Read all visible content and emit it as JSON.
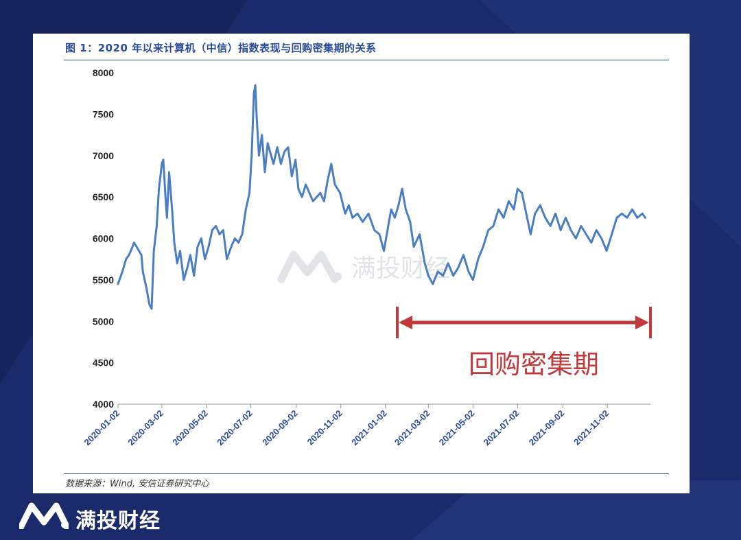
{
  "figure": {
    "title": "图 1：2020 年以来计算机（中信）指数表现与回购密集期的关系",
    "source": "数据来源：Wind, 安信证券研究中心"
  },
  "watermark": {
    "text": "满投财经",
    "icon": "brand-m-logo-icon"
  },
  "footer": {
    "brand": "满投财经",
    "icon": "brand-m-logo-icon"
  },
  "annotation": {
    "label": "回购密集期",
    "start": "2021-01-02",
    "end": "2021-12-31",
    "color": "#c0393b"
  },
  "colors": {
    "line": "#4a7ec4",
    "accent": "#2a4a9a",
    "background": "#1a2a6b"
  },
  "chart_data": {
    "type": "line",
    "title": "",
    "xlabel": "",
    "ylabel": "",
    "ylim": [
      4000,
      8000
    ],
    "yticks": [
      4000,
      4500,
      5000,
      5500,
      6000,
      6500,
      7000,
      7500,
      8000
    ],
    "xticks": [
      "2020-01-02",
      "2020-03-02",
      "2020-05-02",
      "2020-07-02",
      "2020-09-02",
      "2020-11-02",
      "2021-01-02",
      "2021-03-02",
      "2021-05-02",
      "2021-07-02",
      "2021-09-02",
      "2021-11-02"
    ],
    "grid": false,
    "legend": "none",
    "series": [
      {
        "points": [
          [
            "2020-01-02",
            5450
          ],
          [
            "2020-01-08",
            5600
          ],
          [
            "2020-01-13",
            5750
          ],
          [
            "2020-01-17",
            5800
          ],
          [
            "2020-01-21",
            5880
          ],
          [
            "2020-01-24",
            5950
          ],
          [
            "2020-02-03",
            5800
          ],
          [
            "2020-02-05",
            5600
          ],
          [
            "2020-02-10",
            5400
          ],
          [
            "2020-02-14",
            5200
          ],
          [
            "2020-02-17",
            5150
          ],
          [
            "2020-02-20",
            5850
          ],
          [
            "2020-02-24",
            6150
          ],
          [
            "2020-02-27",
            6600
          ],
          [
            "2020-03-02",
            6900
          ],
          [
            "2020-03-04",
            6950
          ],
          [
            "2020-03-07",
            6500
          ],
          [
            "2020-03-09",
            6250
          ],
          [
            "2020-03-12",
            6800
          ],
          [
            "2020-03-16",
            6350
          ],
          [
            "2020-03-19",
            5950
          ],
          [
            "2020-03-23",
            5700
          ],
          [
            "2020-03-27",
            5850
          ],
          [
            "2020-04-01",
            5500
          ],
          [
            "2020-04-06",
            5650
          ],
          [
            "2020-04-10",
            5800
          ],
          [
            "2020-04-15",
            5550
          ],
          [
            "2020-04-20",
            5900
          ],
          [
            "2020-04-25",
            6000
          ],
          [
            "2020-04-30",
            5750
          ],
          [
            "2020-05-05",
            5900
          ],
          [
            "2020-05-10",
            6100
          ],
          [
            "2020-05-15",
            6150
          ],
          [
            "2020-05-20",
            6050
          ],
          [
            "2020-05-25",
            6100
          ],
          [
            "2020-05-30",
            5750
          ],
          [
            "2020-06-05",
            5900
          ],
          [
            "2020-06-10",
            6000
          ],
          [
            "2020-06-15",
            5950
          ],
          [
            "2020-06-20",
            6050
          ],
          [
            "2020-06-25",
            6350
          ],
          [
            "2020-06-30",
            6550
          ],
          [
            "2020-07-03",
            7000
          ],
          [
            "2020-07-06",
            7750
          ],
          [
            "2020-07-08",
            7850
          ],
          [
            "2020-07-10",
            7450
          ],
          [
            "2020-07-13",
            7000
          ],
          [
            "2020-07-17",
            7250
          ],
          [
            "2020-07-21",
            6800
          ],
          [
            "2020-07-25",
            7150
          ],
          [
            "2020-07-28",
            7050
          ],
          [
            "2020-08-02",
            6900
          ],
          [
            "2020-08-07",
            7100
          ],
          [
            "2020-08-12",
            6900
          ],
          [
            "2020-08-17",
            7050
          ],
          [
            "2020-08-22",
            7100
          ],
          [
            "2020-08-27",
            6750
          ],
          [
            "2020-09-01",
            6950
          ],
          [
            "2020-09-05",
            6600
          ],
          [
            "2020-09-10",
            6500
          ],
          [
            "2020-09-15",
            6650
          ],
          [
            "2020-09-20",
            6550
          ],
          [
            "2020-09-25",
            6450
          ],
          [
            "2020-10-05",
            6550
          ],
          [
            "2020-10-10",
            6450
          ],
          [
            "2020-10-15",
            6700
          ],
          [
            "2020-10-20",
            6900
          ],
          [
            "2020-10-25",
            6650
          ],
          [
            "2020-11-01",
            6550
          ],
          [
            "2020-11-08",
            6300
          ],
          [
            "2020-11-13",
            6400
          ],
          [
            "2020-11-18",
            6250
          ],
          [
            "2020-11-25",
            6300
          ],
          [
            "2020-12-02",
            6200
          ],
          [
            "2020-12-10",
            6300
          ],
          [
            "2020-12-18",
            6100
          ],
          [
            "2020-12-25",
            6050
          ],
          [
            "2020-12-31",
            5850
          ],
          [
            "2021-01-05",
            6100
          ],
          [
            "2021-01-10",
            6350
          ],
          [
            "2021-01-15",
            6250
          ],
          [
            "2021-01-20",
            6400
          ],
          [
            "2021-01-25",
            6600
          ],
          [
            "2021-01-30",
            6350
          ],
          [
            "2021-02-05",
            6200
          ],
          [
            "2021-02-10",
            5900
          ],
          [
            "2021-02-18",
            6050
          ],
          [
            "2021-02-25",
            5700
          ],
          [
            "2021-03-02",
            5550
          ],
          [
            "2021-03-08",
            5450
          ],
          [
            "2021-03-15",
            5600
          ],
          [
            "2021-03-22",
            5550
          ],
          [
            "2021-03-29",
            5700
          ],
          [
            "2021-04-05",
            5550
          ],
          [
            "2021-04-12",
            5650
          ],
          [
            "2021-04-19",
            5800
          ],
          [
            "2021-04-26",
            5600
          ],
          [
            "2021-05-02",
            5500
          ],
          [
            "2021-05-09",
            5750
          ],
          [
            "2021-05-16",
            5900
          ],
          [
            "2021-05-23",
            6100
          ],
          [
            "2021-05-30",
            6150
          ],
          [
            "2021-06-06",
            6350
          ],
          [
            "2021-06-13",
            6250
          ],
          [
            "2021-06-20",
            6450
          ],
          [
            "2021-06-27",
            6350
          ],
          [
            "2021-07-02",
            6600
          ],
          [
            "2021-07-08",
            6550
          ],
          [
            "2021-07-14",
            6300
          ],
          [
            "2021-07-20",
            6050
          ],
          [
            "2021-07-26",
            6300
          ],
          [
            "2021-08-02",
            6400
          ],
          [
            "2021-08-09",
            6250
          ],
          [
            "2021-08-16",
            6150
          ],
          [
            "2021-08-23",
            6300
          ],
          [
            "2021-08-30",
            6100
          ],
          [
            "2021-09-06",
            6250
          ],
          [
            "2021-09-13",
            6100
          ],
          [
            "2021-09-20",
            6000
          ],
          [
            "2021-09-27",
            6150
          ],
          [
            "2021-10-04",
            6050
          ],
          [
            "2021-10-11",
            5950
          ],
          [
            "2021-10-18",
            6100
          ],
          [
            "2021-10-25",
            6000
          ],
          [
            "2021-11-01",
            5850
          ],
          [
            "2021-11-08",
            6050
          ],
          [
            "2021-11-15",
            6250
          ],
          [
            "2021-11-22",
            6300
          ],
          [
            "2021-11-29",
            6250
          ],
          [
            "2021-12-06",
            6350
          ],
          [
            "2021-12-13",
            6250
          ],
          [
            "2021-12-20",
            6300
          ],
          [
            "2021-12-24",
            6250
          ]
        ]
      }
    ]
  }
}
